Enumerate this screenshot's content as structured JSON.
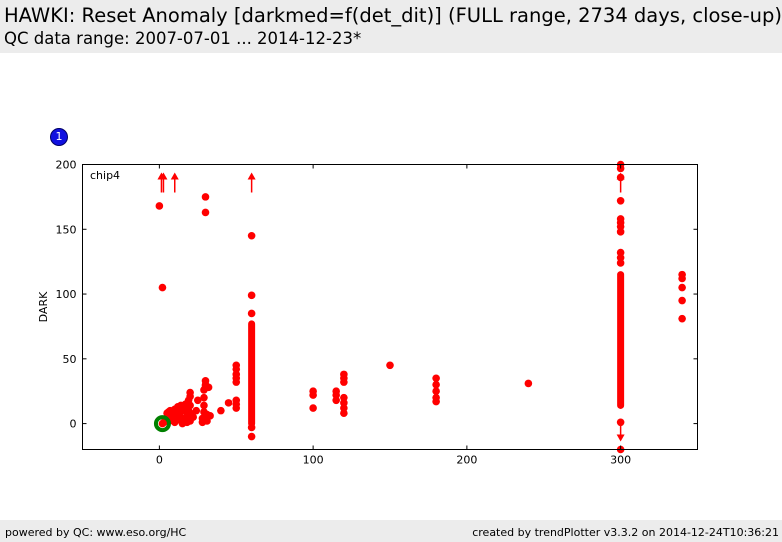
{
  "header": {
    "title": "HAWKI: Reset Anomaly [darkmed=f(det_dit)] (FULL range, 2734 days, close-up)",
    "subtitle": "QC data range: 2007-07-01 ... 2014-12-23*"
  },
  "badge": {
    "label": "1",
    "color": "#1010e0"
  },
  "footer": {
    "left": "powered by QC: www.eso.org/HC",
    "right": "created by trendPlotter v3.3.2 on 2014-12-24T10:36:21"
  },
  "colors": {
    "data": "#ff0000",
    "highlight": "#008000",
    "axis": "#000000"
  },
  "chart_data": {
    "type": "scatter",
    "panel_label": "chip4",
    "xlabel": "",
    "ylabel": "DARK",
    "xlim": [
      -50,
      350
    ],
    "ylim": [
      -20,
      200
    ],
    "xticks": [
      0,
      100,
      200,
      300
    ],
    "yticks": [
      0,
      50,
      100,
      150,
      200
    ],
    "series": [
      {
        "color": "#ff0000",
        "points": [
          [
            0,
            168
          ],
          [
            2,
            105
          ],
          [
            2,
            0
          ],
          [
            3,
            1
          ],
          [
            4,
            2
          ],
          [
            5,
            3
          ],
          [
            5,
            8
          ],
          [
            6,
            5
          ],
          [
            6,
            9
          ],
          [
            7,
            4
          ],
          [
            7,
            10
          ],
          [
            8,
            6
          ],
          [
            9,
            2
          ],
          [
            9,
            8
          ],
          [
            10,
            1
          ],
          [
            10,
            11
          ],
          [
            11,
            5
          ],
          [
            12,
            9
          ],
          [
            12,
            13
          ],
          [
            13,
            3
          ],
          [
            13,
            7
          ],
          [
            14,
            14
          ],
          [
            15,
            0
          ],
          [
            15,
            10
          ],
          [
            16,
            4
          ],
          [
            16,
            12
          ],
          [
            17,
            15
          ],
          [
            18,
            6
          ],
          [
            18,
            1
          ],
          [
            19,
            18
          ],
          [
            19,
            10
          ],
          [
            20,
            24
          ],
          [
            20,
            21
          ],
          [
            20,
            14
          ],
          [
            20,
            8
          ],
          [
            20,
            2
          ],
          [
            22,
            5
          ],
          [
            24,
            10
          ],
          [
            25,
            18
          ],
          [
            28,
            1
          ],
          [
            28,
            4
          ],
          [
            29,
            9
          ],
          [
            29,
            14
          ],
          [
            29,
            20
          ],
          [
            29,
            26
          ],
          [
            30,
            175
          ],
          [
            30,
            163
          ],
          [
            30,
            33
          ],
          [
            30,
            30
          ],
          [
            30,
            29
          ],
          [
            31,
            7
          ],
          [
            31,
            2
          ],
          [
            32,
            28
          ],
          [
            33,
            6
          ],
          [
            40,
            10
          ],
          [
            45,
            16
          ],
          [
            50,
            45
          ],
          [
            50,
            42
          ],
          [
            50,
            38
          ],
          [
            50,
            35
          ],
          [
            50,
            32
          ],
          [
            50,
            18
          ],
          [
            50,
            15
          ],
          [
            50,
            12
          ],
          [
            60,
            145
          ],
          [
            60,
            99
          ],
          [
            60,
            85
          ],
          [
            60,
            -3
          ],
          [
            60,
            -10
          ],
          [
            100,
            25
          ],
          [
            100,
            22
          ],
          [
            100,
            12
          ],
          [
            115,
            25
          ],
          [
            115,
            22
          ],
          [
            115,
            18
          ],
          [
            120,
            38
          ],
          [
            120,
            35
          ],
          [
            120,
            32
          ],
          [
            120,
            20
          ],
          [
            120,
            16
          ],
          [
            120,
            12
          ],
          [
            120,
            8
          ],
          [
            150,
            45
          ],
          [
            180,
            35
          ],
          [
            180,
            30
          ],
          [
            180,
            25
          ],
          [
            180,
            20
          ],
          [
            180,
            17
          ],
          [
            240,
            31
          ],
          [
            300,
            200
          ],
          [
            300,
            197
          ],
          [
            300,
            190
          ],
          [
            300,
            172
          ],
          [
            300,
            158
          ],
          [
            300,
            155
          ],
          [
            300,
            152
          ],
          [
            300,
            148
          ],
          [
            300,
            132
          ],
          [
            300,
            128
          ],
          [
            300,
            124
          ],
          [
            300,
            1
          ],
          [
            300,
            -20
          ],
          [
            340,
            115
          ],
          [
            340,
            112
          ],
          [
            340,
            105
          ],
          [
            340,
            95
          ],
          [
            340,
            81
          ]
        ],
        "vertical_runs": [
          {
            "x": 60,
            "y_from": 0,
            "y_to": 77
          },
          {
            "x": 300,
            "y_from": 14,
            "y_to": 115
          }
        ]
      }
    ],
    "out_of_range_markers": [
      {
        "x": 2,
        "direction": "up",
        "count": 2
      },
      {
        "x": 10,
        "direction": "up",
        "count": 1
      },
      {
        "x": 60,
        "direction": "up",
        "count": 1
      },
      {
        "x": 300,
        "direction": "up",
        "count": 1
      },
      {
        "x": 300,
        "direction": "down",
        "count": 1
      }
    ],
    "highlight_point": {
      "x": 2,
      "y": 0,
      "color": "#008000"
    }
  }
}
